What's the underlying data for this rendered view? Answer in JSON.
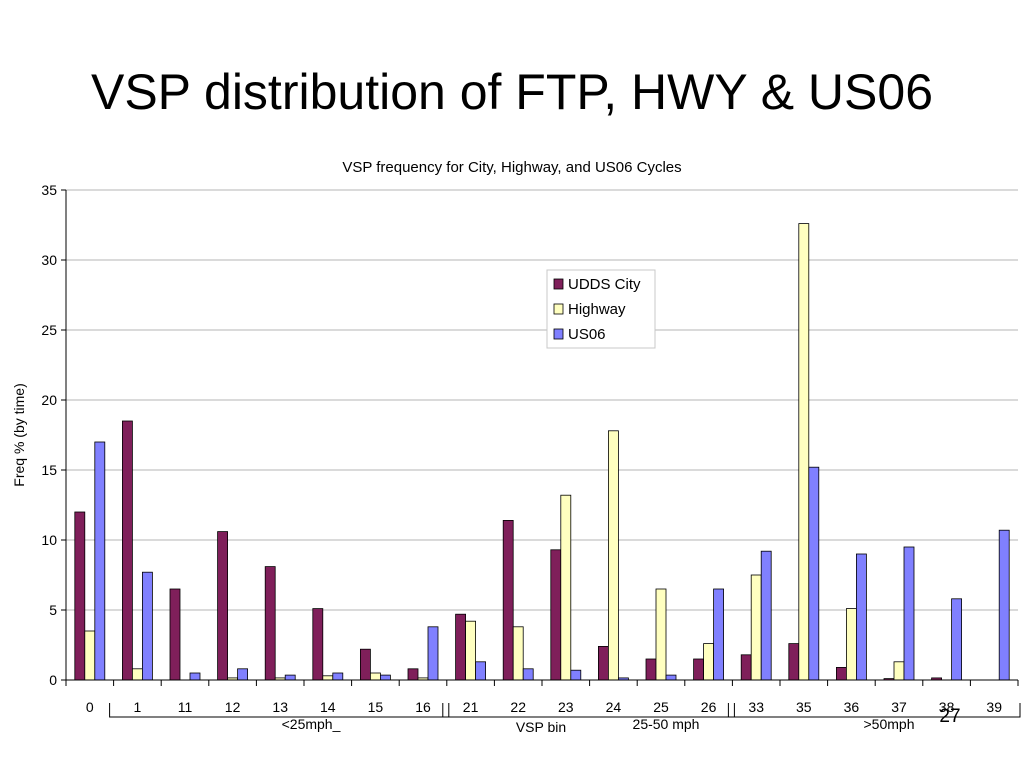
{
  "slide": {
    "title": "VSP distribution of FTP, HWY & US06",
    "page_number": "27"
  },
  "chart_data": {
    "type": "bar",
    "title": "VSP frequency for City, Highway, and US06 Cycles",
    "xlabel": "VSP bin",
    "ylabel": "Freq % (by time)",
    "ylim": [
      0,
      35
    ],
    "yticks": [
      0,
      5,
      10,
      15,
      20,
      25,
      30,
      35
    ],
    "grid": true,
    "legend_position": "top-center",
    "categories": [
      "0",
      "1",
      "11",
      "12",
      "13",
      "14",
      "15",
      "16",
      "21",
      "22",
      "23",
      "24",
      "25",
      "26",
      "33",
      "35",
      "36",
      "37",
      "38",
      "39"
    ],
    "series": [
      {
        "name": "UDDS City",
        "color": "#7f1f5a",
        "values": [
          12.0,
          18.5,
          6.5,
          10.6,
          8.1,
          5.1,
          2.2,
          0.8,
          4.7,
          11.4,
          9.3,
          2.4,
          1.5,
          1.5,
          1.8,
          2.6,
          0.9,
          0.1,
          0.15,
          0
        ]
      },
      {
        "name": "Highway",
        "color": "#ffffc0",
        "values": [
          3.5,
          0.8,
          0,
          0.15,
          0.15,
          0.3,
          0.5,
          0.15,
          4.2,
          3.8,
          13.2,
          17.8,
          6.5,
          2.6,
          7.5,
          32.6,
          5.1,
          1.3,
          0,
          0
        ]
      },
      {
        "name": "US06",
        "color": "#8080ff",
        "values": [
          17.0,
          7.7,
          0.5,
          0.8,
          0.35,
          0.5,
          0.35,
          3.8,
          1.3,
          0.8,
          0.7,
          0.15,
          0.35,
          6.5,
          9.2,
          15.2,
          9.0,
          9.5,
          5.8,
          10.7
        ]
      }
    ],
    "groups": [
      {
        "label": "<25mph_",
        "from": "1",
        "to": "16"
      },
      {
        "label": "25-50 mph",
        "from": "21",
        "to": "26"
      },
      {
        "label": ">50mph",
        "from": "33",
        "to": "39"
      }
    ]
  }
}
